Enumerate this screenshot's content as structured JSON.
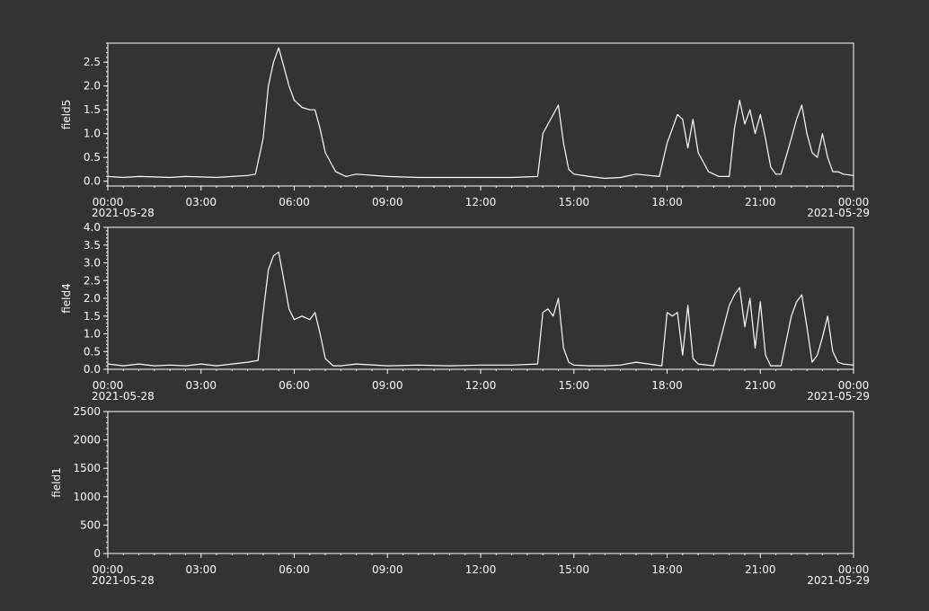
{
  "colors": {
    "background": "#333333",
    "foreground": "#ffffff"
  },
  "chart_data": [
    {
      "type": "line",
      "ylabel": "field5",
      "ylim": [
        -0.1,
        2.9
      ],
      "yticks": [
        0.0,
        0.5,
        1.0,
        1.5,
        2.0,
        2.5
      ],
      "ytick_labels": [
        "0.0",
        "0.5",
        "1.0",
        "1.5",
        "2.0",
        "2.5"
      ],
      "xlim": [
        "2021-05-28 00:00",
        "2021-05-29 00:00"
      ],
      "xtick_labels": [
        "00:00",
        "03:00",
        "06:00",
        "09:00",
        "12:00",
        "15:00",
        "18:00",
        "21:00",
        "00:00"
      ],
      "xdate_labels": {
        "start": "2021-05-28",
        "end": "2021-05-29"
      },
      "grid": false,
      "series": [
        {
          "x": [
            "00:00",
            "00:30",
            "01:00",
            "01:30",
            "02:00",
            "02:30",
            "03:00",
            "03:30",
            "04:00",
            "04:30",
            "04:45",
            "05:00",
            "05:10",
            "05:20",
            "05:30",
            "05:40",
            "05:50",
            "06:00",
            "06:15",
            "06:30",
            "06:40",
            "06:50",
            "07:00",
            "07:20",
            "07:40",
            "08:00",
            "09:00",
            "10:00",
            "11:00",
            "12:00",
            "13:00",
            "13:50",
            "14:00",
            "14:10",
            "14:20",
            "14:30",
            "14:40",
            "14:50",
            "15:00",
            "15:30",
            "16:00",
            "16:30",
            "17:00",
            "17:45",
            "18:00",
            "18:10",
            "18:20",
            "18:30",
            "18:40",
            "18:50",
            "19:00",
            "19:20",
            "19:40",
            "20:00",
            "20:10",
            "20:20",
            "20:30",
            "20:40",
            "20:50",
            "21:00",
            "21:10",
            "21:20",
            "21:30",
            "21:40",
            "22:00",
            "22:10",
            "22:20",
            "22:30",
            "22:40",
            "22:50",
            "23:00",
            "23:10",
            "23:20",
            "23:30",
            "23:40",
            "24:00"
          ],
          "values": [
            0.1,
            0.08,
            0.1,
            0.09,
            0.08,
            0.1,
            0.09,
            0.08,
            0.1,
            0.12,
            0.15,
            0.9,
            2.0,
            2.5,
            2.8,
            2.4,
            2.0,
            1.7,
            1.55,
            1.5,
            1.5,
            1.1,
            0.6,
            0.2,
            0.1,
            0.15,
            0.1,
            0.08,
            0.08,
            0.08,
            0.08,
            0.1,
            1.0,
            1.2,
            1.4,
            1.6,
            0.8,
            0.25,
            0.15,
            0.1,
            0.06,
            0.08,
            0.15,
            0.1,
            0.8,
            1.1,
            1.4,
            1.3,
            0.7,
            1.3,
            0.6,
            0.2,
            0.1,
            0.1,
            1.1,
            1.7,
            1.2,
            1.5,
            1.0,
            1.4,
            0.9,
            0.3,
            0.15,
            0.15,
            0.9,
            1.3,
            1.6,
            1.0,
            0.6,
            0.5,
            1.0,
            0.5,
            0.2,
            0.2,
            0.15,
            0.12
          ]
        }
      ]
    },
    {
      "type": "line",
      "ylabel": "field4",
      "ylim": [
        0.0,
        4.0
      ],
      "yticks": [
        0.0,
        0.5,
        1.0,
        1.5,
        2.0,
        2.5,
        3.0,
        3.5,
        4.0
      ],
      "ytick_labels": [
        "0.0",
        "0.5",
        "1.0",
        "1.5",
        "2.0",
        "2.5",
        "3.0",
        "3.5",
        "4.0"
      ],
      "xlim": [
        "2021-05-28 00:00",
        "2021-05-29 00:00"
      ],
      "xtick_labels": [
        "00:00",
        "03:00",
        "06:00",
        "09:00",
        "12:00",
        "15:00",
        "18:00",
        "21:00",
        "00:00"
      ],
      "xdate_labels": {
        "start": "2021-05-28",
        "end": "2021-05-29"
      },
      "grid": false,
      "series": [
        {
          "x": [
            "00:00",
            "00:30",
            "01:00",
            "01:30",
            "02:00",
            "02:30",
            "03:00",
            "03:30",
            "04:00",
            "04:30",
            "04:50",
            "05:00",
            "05:10",
            "05:20",
            "05:30",
            "05:40",
            "05:50",
            "06:00",
            "06:15",
            "06:30",
            "06:40",
            "06:50",
            "07:00",
            "07:15",
            "07:30",
            "08:00",
            "09:00",
            "10:00",
            "11:00",
            "12:00",
            "13:00",
            "13:50",
            "14:00",
            "14:10",
            "14:20",
            "14:30",
            "14:40",
            "14:50",
            "15:00",
            "15:30",
            "16:00",
            "16:30",
            "17:00",
            "17:50",
            "18:00",
            "18:10",
            "18:20",
            "18:30",
            "18:40",
            "18:50",
            "19:00",
            "19:30",
            "20:00",
            "20:10",
            "20:20",
            "20:30",
            "20:40",
            "20:50",
            "21:00",
            "21:10",
            "21:20",
            "21:40",
            "22:00",
            "22:10",
            "22:20",
            "22:30",
            "22:40",
            "22:50",
            "23:00",
            "23:10",
            "23:20",
            "23:30",
            "23:40",
            "24:00"
          ],
          "values": [
            0.15,
            0.1,
            0.15,
            0.1,
            0.12,
            0.1,
            0.15,
            0.1,
            0.15,
            0.2,
            0.25,
            1.6,
            2.8,
            3.2,
            3.3,
            2.5,
            1.7,
            1.4,
            1.5,
            1.4,
            1.6,
            1.0,
            0.3,
            0.1,
            0.1,
            0.15,
            0.1,
            0.12,
            0.1,
            0.12,
            0.12,
            0.15,
            1.6,
            1.7,
            1.5,
            2.0,
            0.6,
            0.2,
            0.12,
            0.1,
            0.1,
            0.12,
            0.2,
            0.1,
            1.6,
            1.5,
            1.6,
            0.4,
            1.8,
            0.3,
            0.15,
            0.1,
            1.8,
            2.1,
            2.3,
            1.2,
            2.0,
            0.6,
            1.9,
            0.4,
            0.1,
            0.1,
            1.5,
            1.9,
            2.1,
            1.2,
            0.2,
            0.4,
            0.9,
            1.5,
            0.5,
            0.2,
            0.15,
            0.12
          ]
        }
      ]
    },
    {
      "type": "line",
      "ylabel": "field1",
      "ylim": [
        0,
        2500
      ],
      "yticks": [
        0,
        500,
        1000,
        1500,
        2000,
        2500
      ],
      "ytick_labels": [
        "0",
        "500",
        "1000",
        "1500",
        "2000",
        "2500"
      ],
      "xlim": [
        "2021-05-28 00:00",
        "2021-05-29 00:00"
      ],
      "xtick_labels": [
        "00:00",
        "03:00",
        "06:00",
        "09:00",
        "12:00",
        "15:00",
        "18:00",
        "21:00",
        "00:00"
      ],
      "xdate_labels": {
        "start": "2021-05-28",
        "end": "2021-05-29"
      },
      "grid": false,
      "series": []
    }
  ]
}
